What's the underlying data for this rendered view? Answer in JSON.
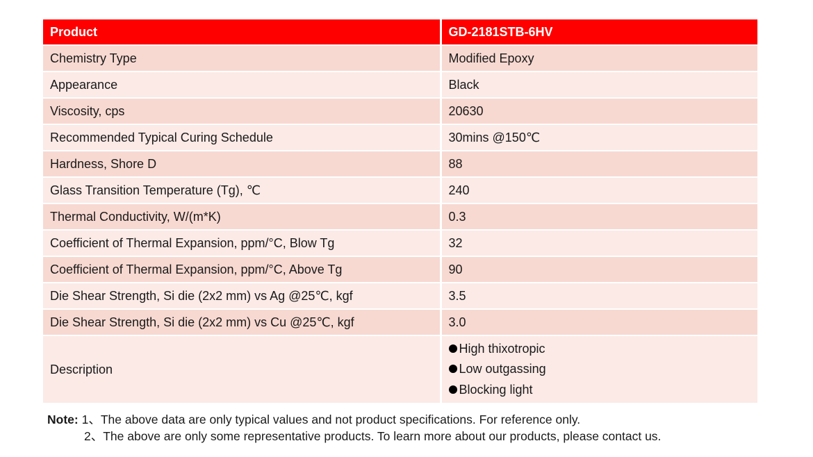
{
  "table": {
    "header": {
      "col1": "Product",
      "col2": "GD-2181STB-6HV"
    },
    "rows": [
      {
        "property": "Chemistry Type",
        "value": "Modified Epoxy"
      },
      {
        "property": "Appearance",
        "value": "Black"
      },
      {
        "property": "Viscosity, cps",
        "value": "20630"
      },
      {
        "property": "Recommended Typical Curing Schedule",
        "value": "30mins @150℃"
      },
      {
        "property": "Hardness, Shore D",
        "value": "88"
      },
      {
        "property": "Glass Transition Temperature (Tg), ℃",
        "value": "240"
      },
      {
        "property": "Thermal Conductivity, W/(m*K)",
        "value": "0.3"
      },
      {
        "property": "Coefficient of Thermal Expansion, ppm/°C, Blow Tg",
        "value": "32"
      },
      {
        "property": "Coefficient of Thermal Expansion, ppm/°C, Above Tg",
        "value": "90"
      },
      {
        "property": "Die Shear Strength, Si die (2x2 mm) vs Ag @25℃, kgf",
        "value": "3.5"
      },
      {
        "property": "Die Shear Strength, Si die (2x2 mm) vs Cu @25℃, kgf",
        "value": "3.0"
      }
    ],
    "description": {
      "property": "Description",
      "items": [
        "High thixotropic",
        "Low outgassing",
        "Blocking light"
      ]
    }
  },
  "notes": {
    "label": "Note:",
    "line1": "1、The above data are only typical values and not product specifications. For reference only.",
    "line2": "2、The above are only some representative products. To learn more about our products, please contact us."
  },
  "colors": {
    "header_bg": "#ff0000",
    "row_dark": "#f7d9d1",
    "row_light": "#fbeae6"
  }
}
